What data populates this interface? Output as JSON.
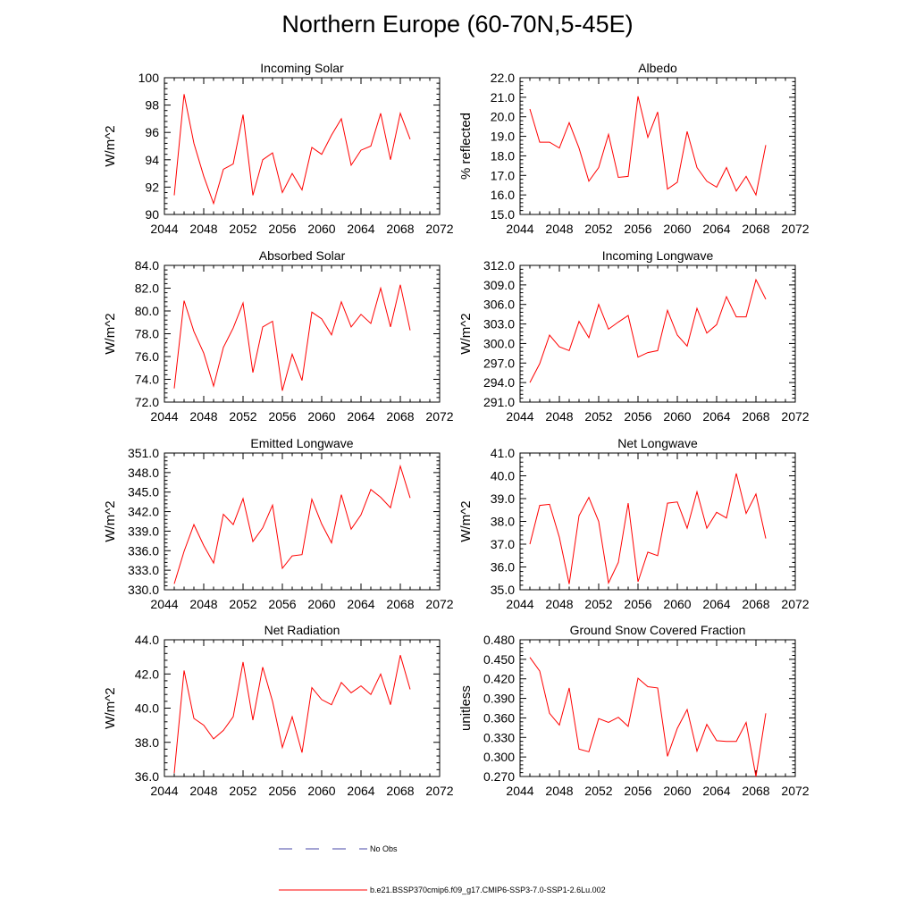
{
  "figure": {
    "title": "Northern Europe (60-70N,5-45E)"
  },
  "legend": [
    {
      "label": "No Obs",
      "color": "#4a4aa8",
      "style": "dashed"
    },
    {
      "label": "b.e21.BSSP370cmip6.f09_g17.CMIP6-SSP3-7.0-SSP1-2.6Lu.002",
      "color": "#ff0000",
      "style": "solid"
    }
  ],
  "chart_data": [
    {
      "type": "line",
      "title": "Incoming Solar",
      "xlabel": "",
      "ylabel": "W/m^2",
      "xlim": [
        2044,
        2072
      ],
      "ylim": [
        90,
        100
      ],
      "xticks": [
        "2044",
        "2048",
        "2052",
        "2056",
        "2060",
        "2064",
        "2068",
        "2072"
      ],
      "yticks": [
        "90",
        "92",
        "94",
        "96",
        "98",
        "100"
      ],
      "series": [
        {
          "color": "#ff0000",
          "x": [
            2045,
            2046,
            2047,
            2048,
            2049,
            2050,
            2051,
            2052,
            2053,
            2054,
            2055,
            2056,
            2057,
            2058,
            2059,
            2060,
            2061,
            2062,
            2063,
            2064,
            2065,
            2066,
            2067,
            2068,
            2069
          ],
          "y": [
            91.4,
            98.8,
            95.2,
            92.8,
            90.8,
            93.3,
            93.7,
            97.3,
            91.4,
            94.0,
            94.5,
            91.6,
            93.0,
            91.8,
            94.9,
            94.4,
            95.8,
            97.0,
            93.6,
            94.7,
            95.0,
            97.4,
            94.0,
            97.4,
            95.5
          ]
        }
      ]
    },
    {
      "type": "line",
      "title": "Albedo",
      "xlabel": "",
      "ylabel": "% reflected",
      "xlim": [
        2044,
        2072
      ],
      "ylim": [
        15.0,
        22.0
      ],
      "xticks": [
        "2044",
        "2048",
        "2052",
        "2056",
        "2060",
        "2064",
        "2068",
        "2072"
      ],
      "yticks": [
        "15.0",
        "16.0",
        "17.0",
        "18.0",
        "19.0",
        "20.0",
        "21.0",
        "22.0"
      ],
      "series": [
        {
          "color": "#ff0000",
          "x": [
            2045,
            2046,
            2047,
            2048,
            2049,
            2050,
            2051,
            2052,
            2053,
            2054,
            2055,
            2056,
            2057,
            2058,
            2059,
            2060,
            2061,
            2062,
            2063,
            2064,
            2065,
            2066,
            2067,
            2068,
            2069
          ],
          "y": [
            20.4,
            18.7,
            18.7,
            18.4,
            19.7,
            18.4,
            16.7,
            17.4,
            19.1,
            16.9,
            16.95,
            21.05,
            18.95,
            20.25,
            16.3,
            16.65,
            19.25,
            17.4,
            16.7,
            16.4,
            17.4,
            16.2,
            16.95,
            16.0,
            18.55
          ]
        }
      ]
    },
    {
      "type": "line",
      "title": "Absorbed Solar",
      "xlabel": "",
      "ylabel": "W/m^2",
      "xlim": [
        2044,
        2072
      ],
      "ylim": [
        72.0,
        84.0
      ],
      "xticks": [
        "2044",
        "2048",
        "2052",
        "2056",
        "2060",
        "2064",
        "2068",
        "2072"
      ],
      "yticks": [
        "72.0",
        "74.0",
        "76.0",
        "78.0",
        "80.0",
        "82.0",
        "84.0"
      ],
      "series": [
        {
          "color": "#ff0000",
          "x": [
            2045,
            2046,
            2047,
            2048,
            2049,
            2050,
            2051,
            2052,
            2053,
            2054,
            2055,
            2056,
            2057,
            2058,
            2059,
            2060,
            2061,
            2062,
            2063,
            2064,
            2065,
            2066,
            2067,
            2068,
            2069
          ],
          "y": [
            73.2,
            80.9,
            78.2,
            76.3,
            73.4,
            76.8,
            78.5,
            80.7,
            74.6,
            78.6,
            79.1,
            73.0,
            76.2,
            73.9,
            79.9,
            79.3,
            77.9,
            80.8,
            78.6,
            79.7,
            78.9,
            82.0,
            78.6,
            82.3,
            78.3
          ]
        }
      ]
    },
    {
      "type": "line",
      "title": "Incoming Longwave",
      "xlabel": "",
      "ylabel": "W/m^2",
      "xlim": [
        2044,
        2072
      ],
      "ylim": [
        291.0,
        312.0
      ],
      "xticks": [
        "2044",
        "2048",
        "2052",
        "2056",
        "2060",
        "2064",
        "2068",
        "2072"
      ],
      "yticks": [
        "291.0",
        "294.0",
        "297.0",
        "300.0",
        "303.0",
        "306.0",
        "309.0",
        "312.0"
      ],
      "series": [
        {
          "color": "#ff0000",
          "x": [
            2045,
            2046,
            2047,
            2048,
            2049,
            2050,
            2051,
            2052,
            2053,
            2054,
            2055,
            2056,
            2057,
            2058,
            2059,
            2060,
            2061,
            2062,
            2063,
            2064,
            2065,
            2066,
            2067,
            2068,
            2069
          ],
          "y": [
            294.0,
            296.9,
            301.3,
            299.5,
            298.9,
            303.4,
            300.9,
            306.0,
            302.2,
            303.3,
            304.3,
            297.9,
            298.6,
            298.9,
            305.1,
            301.3,
            299.6,
            305.4,
            301.6,
            302.9,
            307.2,
            304.1,
            304.1,
            309.8,
            306.8
          ]
        }
      ]
    },
    {
      "type": "line",
      "title": "Emitted Longwave",
      "xlabel": "",
      "ylabel": "W/m^2",
      "xlim": [
        2044,
        2072
      ],
      "ylim": [
        330.0,
        351.0
      ],
      "xticks": [
        "2044",
        "2048",
        "2052",
        "2056",
        "2060",
        "2064",
        "2068",
        "2072"
      ],
      "yticks": [
        "330.0",
        "333.0",
        "336.0",
        "339.0",
        "342.0",
        "345.0",
        "348.0",
        "351.0"
      ],
      "series": [
        {
          "color": "#ff0000",
          "x": [
            2045,
            2046,
            2047,
            2048,
            2049,
            2050,
            2051,
            2052,
            2053,
            2054,
            2055,
            2056,
            2057,
            2058,
            2059,
            2060,
            2061,
            2062,
            2063,
            2064,
            2065,
            2066,
            2067,
            2068,
            2069
          ],
          "y": [
            330.9,
            335.9,
            340.0,
            336.8,
            334.1,
            341.6,
            340.0,
            344.0,
            337.4,
            339.5,
            343.0,
            333.3,
            335.2,
            335.4,
            343.9,
            340.1,
            337.2,
            344.6,
            339.3,
            341.5,
            345.4,
            344.2,
            342.6,
            349.0,
            344.1
          ]
        }
      ]
    },
    {
      "type": "line",
      "title": "Net Longwave",
      "xlabel": "",
      "ylabel": "W/m^2",
      "xlim": [
        2044,
        2072
      ],
      "ylim": [
        35.0,
        41.0
      ],
      "xticks": [
        "2044",
        "2048",
        "2052",
        "2056",
        "2060",
        "2064",
        "2068",
        "2072"
      ],
      "yticks": [
        "35.0",
        "36.0",
        "37.0",
        "38.0",
        "39.0",
        "40.0",
        "41.0"
      ],
      "series": [
        {
          "color": "#ff0000",
          "x": [
            2045,
            2046,
            2047,
            2048,
            2049,
            2050,
            2051,
            2052,
            2053,
            2054,
            2055,
            2056,
            2057,
            2058,
            2059,
            2060,
            2061,
            2062,
            2063,
            2064,
            2065,
            2066,
            2067,
            2068,
            2069
          ],
          "y": [
            37.0,
            38.7,
            38.75,
            37.3,
            35.25,
            38.25,
            39.05,
            38.0,
            35.3,
            36.2,
            38.8,
            35.35,
            36.65,
            36.5,
            38.8,
            38.85,
            37.7,
            39.3,
            37.7,
            38.4,
            38.15,
            40.1,
            38.35,
            39.2,
            37.25
          ]
        }
      ]
    },
    {
      "type": "line",
      "title": "Net Radiation",
      "xlabel": "",
      "ylabel": "W/m^2",
      "xlim": [
        2044,
        2072
      ],
      "ylim": [
        36.0,
        44.0
      ],
      "xticks": [
        "2044",
        "2048",
        "2052",
        "2056",
        "2060",
        "2064",
        "2068",
        "2072"
      ],
      "yticks": [
        "36.0",
        "38.0",
        "40.0",
        "42.0",
        "44.0"
      ],
      "series": [
        {
          "color": "#ff0000",
          "x": [
            2045,
            2046,
            2047,
            2048,
            2049,
            2050,
            2051,
            2052,
            2053,
            2054,
            2055,
            2056,
            2057,
            2058,
            2059,
            2060,
            2061,
            2062,
            2063,
            2064,
            2065,
            2066,
            2067,
            2068,
            2069
          ],
          "y": [
            36.2,
            42.2,
            39.4,
            39.0,
            38.2,
            38.7,
            39.5,
            42.7,
            39.3,
            42.4,
            40.4,
            37.7,
            39.5,
            37.4,
            41.2,
            40.5,
            40.2,
            41.5,
            40.9,
            41.3,
            40.8,
            42.0,
            40.2,
            43.1,
            41.1
          ]
        }
      ]
    },
    {
      "type": "line",
      "title": "Ground Snow Covered Fraction",
      "xlabel": "",
      "ylabel": "unitless",
      "xlim": [
        2044,
        2072
      ],
      "ylim": [
        0.27,
        0.48
      ],
      "xticks": [
        "2044",
        "2048",
        "2052",
        "2056",
        "2060",
        "2064",
        "2068",
        "2072"
      ],
      "yticks": [
        "0.270",
        "0.300",
        "0.330",
        "0.360",
        "0.390",
        "0.420",
        "0.450",
        "0.480"
      ],
      "series": [
        {
          "color": "#ff0000",
          "x": [
            2045,
            2046,
            2047,
            2048,
            2049,
            2050,
            2051,
            2052,
            2053,
            2054,
            2055,
            2056,
            2057,
            2058,
            2059,
            2060,
            2061,
            2062,
            2063,
            2064,
            2065,
            2066,
            2067,
            2068,
            2069
          ],
          "y": [
            0.453,
            0.432,
            0.367,
            0.349,
            0.406,
            0.312,
            0.308,
            0.359,
            0.353,
            0.361,
            0.347,
            0.421,
            0.408,
            0.406,
            0.301,
            0.344,
            0.373,
            0.309,
            0.35,
            0.325,
            0.324,
            0.324,
            0.353,
            0.27,
            0.367
          ]
        }
      ]
    }
  ]
}
